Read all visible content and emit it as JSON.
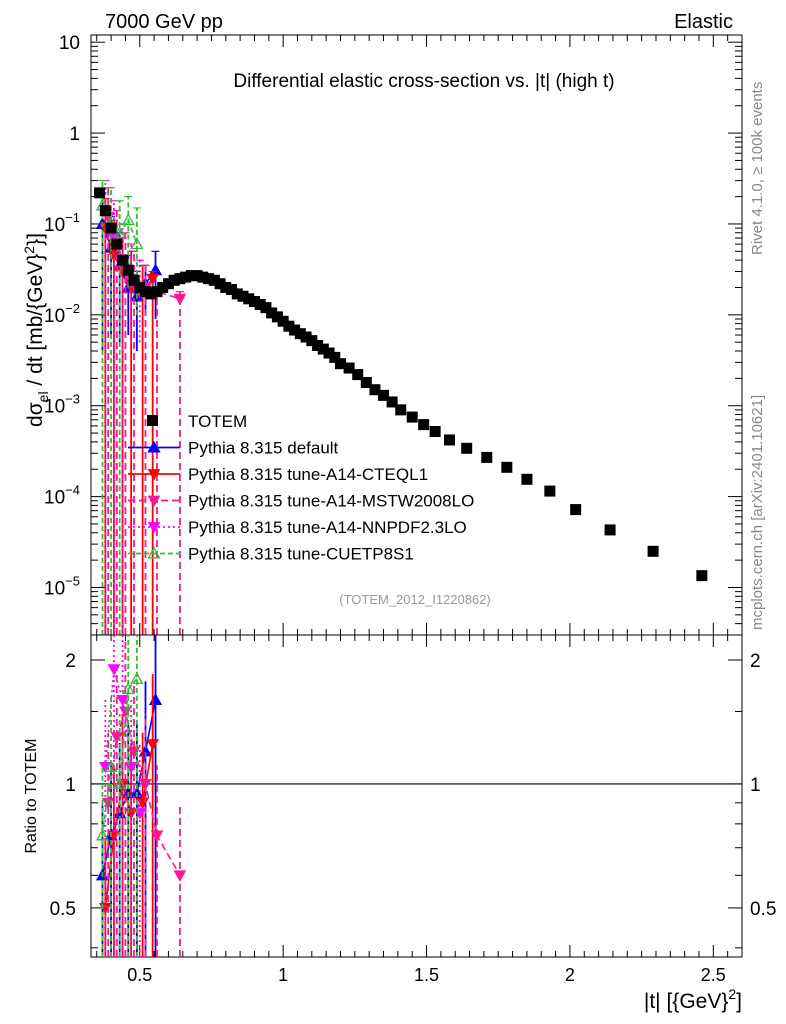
{
  "header": {
    "left": "7000 GeV pp",
    "right": "Elastic"
  },
  "side_text": {
    "top": "Rivet 4.1.0, ≥ 100k events",
    "bottom": "mcplots.cern.ch [arXiv:2401.10621]"
  },
  "chart_data": {
    "type": "scatter",
    "title": "Differential elastic cross-section vs. |t| (high t)",
    "analysis_label": "(TOTEM_2012_I1220862)",
    "xlabel_main": "|t| [{GeV}",
    "xlabel_sup": "2",
    "xlabel_end": "]",
    "ylabel_sigma": "dσ",
    "ylabel_sub": "el",
    "ylabel_mid": " / dt [mb/{GeV}",
    "ylabel_sup": "2",
    "ylabel_end": "}]",
    "ratio_ylabel": "Ratio to TOTEM",
    "xlim": [
      0.33,
      2.6
    ],
    "ylim": [
      3e-06,
      12
    ],
    "ratio_ylim": [
      0.38,
      2.3
    ],
    "x_ticks": [
      0.5,
      1,
      1.5,
      2,
      2.5
    ],
    "x_tick_labels": [
      "0.5",
      "1",
      "1.5",
      "2",
      "2.5"
    ],
    "y_tick_labels": [
      {
        "base": "10",
        "exp": "",
        "text": "10"
      },
      {
        "base": "1",
        "exp": "",
        "text": "1"
      },
      {
        "base": "10",
        "exp": "−1"
      },
      {
        "base": "10",
        "exp": "−2"
      },
      {
        "base": "10",
        "exp": "−3"
      },
      {
        "base": "10",
        "exp": "−4"
      },
      {
        "base": "10",
        "exp": "−5"
      }
    ],
    "ratio_ticks": [
      0.5,
      1,
      2
    ],
    "ratio_tick_labels": [
      "0.5",
      "1",
      "2"
    ],
    "legend": [
      {
        "label": "TOTEM",
        "color": "#000000",
        "style": "marker"
      },
      {
        "label": "Pythia 8.315 default",
        "color": "#0000ff",
        "style": "solid"
      },
      {
        "label": "Pythia 8.315 tune-A14-CTEQL1",
        "color": "#ff0000",
        "style": "solid"
      },
      {
        "label": "Pythia 8.315 tune-A14-MSTW2008LO",
        "color": "#ff1493",
        "style": "dashed"
      },
      {
        "label": "Pythia 8.315 tune-A14-NNPDF2.3LO",
        "color": "#ff00ff",
        "style": "dotted"
      },
      {
        "label": "Pythia 8.315 tune-CUETP8S1",
        "color": "#33bb33",
        "style": "dashed"
      }
    ],
    "data_points": {
      "name": "TOTEM",
      "x": [
        0.36,
        0.38,
        0.4,
        0.42,
        0.44,
        0.46,
        0.48,
        0.5,
        0.52,
        0.54,
        0.56,
        0.58,
        0.6,
        0.62,
        0.64,
        0.66,
        0.68,
        0.7,
        0.72,
        0.74,
        0.76,
        0.78,
        0.8,
        0.82,
        0.84,
        0.86,
        0.88,
        0.9,
        0.92,
        0.94,
        0.96,
        0.98,
        1.0,
        1.02,
        1.04,
        1.06,
        1.08,
        1.1,
        1.12,
        1.14,
        1.16,
        1.18,
        1.2,
        1.23,
        1.26,
        1.29,
        1.32,
        1.35,
        1.38,
        1.41,
        1.45,
        1.49,
        1.53,
        1.58,
        1.64,
        1.71,
        1.78,
        1.85,
        1.93,
        2.02,
        2.14,
        2.29,
        2.46
      ],
      "y": [
        0.22,
        0.14,
        0.09,
        0.06,
        0.04,
        0.031,
        0.024,
        0.02,
        0.018,
        0.017,
        0.018,
        0.02,
        0.022,
        0.024,
        0.025,
        0.026,
        0.027,
        0.027,
        0.026,
        0.025,
        0.024,
        0.022,
        0.02,
        0.019,
        0.017,
        0.016,
        0.015,
        0.014,
        0.013,
        0.012,
        0.0105,
        0.0095,
        0.0085,
        0.0075,
        0.0068,
        0.0062,
        0.0057,
        0.0052,
        0.0046,
        0.0042,
        0.0038,
        0.0034,
        0.0029,
        0.0026,
        0.0022,
        0.0018,
        0.0015,
        0.0013,
        0.0011,
        0.0009,
        0.00075,
        0.00062,
        0.00052,
        0.00042,
        0.00034,
        0.00027,
        0.00021,
        0.000155,
        0.000115,
        7.2e-05,
        4.3e-05,
        2.5e-05,
        1.35e-05
      ]
    },
    "series": [
      {
        "name": "Pythia 8.315 default",
        "color": "#0000ff",
        "dash": "",
        "marker": "tri-up",
        "x": [
          0.37,
          0.4,
          0.43,
          0.46,
          0.49,
          0.52,
          0.555
        ],
        "y": [
          0.1,
          0.055,
          0.035,
          0.02,
          0.016,
          0.022,
          0.031
        ],
        "ylo": [
          0.004,
          0.006,
          0.005,
          0.006,
          0.004,
          0.01,
          0.009
        ],
        "yhi": [
          0.22,
          0.12,
          0.08,
          0.045,
          0.03,
          0.035,
          0.05
        ],
        "ratio": [
          0.6,
          0.75,
          0.85,
          0.95,
          0.95,
          1.2,
          1.6
        ]
      },
      {
        "name": "Pythia 8.315 tune-A14-CTEQL1",
        "color": "#ff0000",
        "dash": "",
        "marker": "tri-down",
        "x": [
          0.38,
          0.41,
          0.44,
          0.47,
          0.51,
          0.545
        ],
        "y": [
          0.09,
          0.045,
          0.03,
          0.02,
          0.018,
          0.025
        ],
        "ylo": [
          3e-06,
          3e-06,
          3e-06,
          3e-06,
          3e-06,
          3e-06
        ],
        "yhi": [
          0.19,
          0.11,
          0.07,
          0.05,
          0.035,
          0.03
        ],
        "ratio": [
          0.5,
          0.75,
          1.0,
          0.85,
          0.9,
          1.25
        ]
      },
      {
        "name": "Pythia 8.315 tune-A14-MSTW2008LO",
        "color": "#ff1493",
        "dash": "7,4",
        "marker": "tri-down",
        "x": [
          0.39,
          0.42,
          0.45,
          0.48,
          0.52,
          0.56,
          0.64
        ],
        "y": [
          0.12,
          0.06,
          0.03,
          0.022,
          0.02,
          0.018,
          0.015
        ],
        "ylo": [
          3e-06,
          3e-06,
          3e-06,
          3e-06,
          3e-06,
          3e-06,
          3e-06
        ],
        "yhi": [
          0.25,
          0.14,
          0.08,
          0.05,
          0.035,
          0.02,
          0.018
        ],
        "ratio": [
          0.9,
          1.3,
          1.5,
          1.2,
          1.0,
          0.75,
          0.6
        ]
      },
      {
        "name": "Pythia 8.315 tune-A14-NNPDF2.3LO",
        "color": "#ff00ff",
        "dash": "2,3",
        "marker": "tri-down",
        "x": [
          0.38,
          0.41,
          0.44,
          0.47,
          0.5
        ],
        "y": [
          0.14,
          0.07,
          0.04,
          0.025,
          0.018
        ],
        "ylo": [
          3e-06,
          3e-06,
          3e-06,
          0.005,
          0.005
        ],
        "yhi": [
          0.3,
          0.18,
          0.1,
          0.06,
          0.04
        ],
        "ratio": [
          1.1,
          1.9,
          1.6,
          1.1,
          0.85
        ]
      },
      {
        "name": "Pythia 8.315 tune-CUETP8S1",
        "color": "#33bb33",
        "dash": "5,3",
        "marker": "tri-up-open",
        "x": [
          0.37,
          0.4,
          0.43,
          0.46,
          0.49
        ],
        "y": [
          0.16,
          0.1,
          0.08,
          0.11,
          0.06
        ],
        "ylo": [
          3e-06,
          3e-06,
          3e-06,
          0.02,
          0.01
        ],
        "yhi": [
          0.3,
          0.25,
          0.18,
          0.2,
          0.15
        ],
        "ratio": [
          0.75,
          1.1,
          1.0,
          1.7,
          1.8
        ]
      }
    ]
  }
}
